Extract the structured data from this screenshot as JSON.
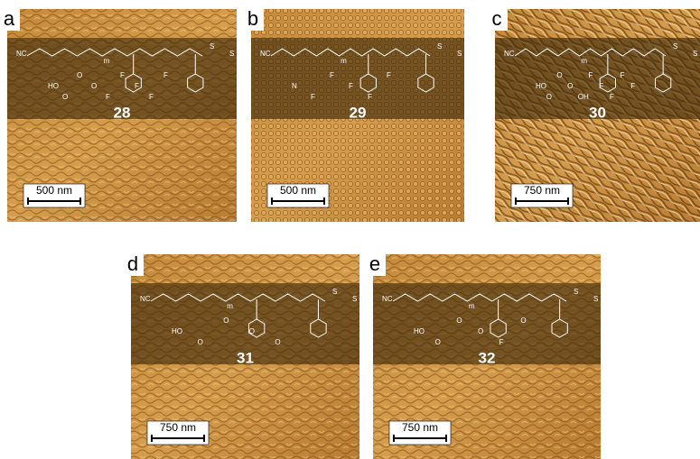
{
  "figure": {
    "panels": [
      {
        "letter": "a",
        "compound": "28",
        "scale_bar": "500 nm",
        "structure_labels": [
          "NC",
          "HO",
          "O",
          "O",
          "O",
          "F",
          "F",
          "F",
          "F",
          "F",
          "m",
          "S",
          "S"
        ]
      },
      {
        "letter": "b",
        "compound": "29",
        "scale_bar": "500 nm",
        "structure_labels": [
          "NC",
          "N",
          "F",
          "F",
          "F",
          "F",
          "F",
          "m",
          "S",
          "S"
        ]
      },
      {
        "letter": "c",
        "compound": "30",
        "scale_bar": "750 nm",
        "structure_labels": [
          "NC",
          "HO",
          "O",
          "O",
          "O",
          "OH",
          "F",
          "F",
          "F",
          "F",
          "F",
          "m",
          "S",
          "S"
        ]
      },
      {
        "letter": "d",
        "compound": "31",
        "scale_bar": "750 nm",
        "structure_labels": [
          "NC",
          "HO",
          "O",
          "O",
          "O",
          "O",
          "m",
          "S",
          "S"
        ]
      },
      {
        "letter": "e",
        "compound": "32",
        "scale_bar": "750 nm",
        "structure_labels": [
          "NC",
          "HO",
          "O",
          "O",
          "O",
          "F",
          "O",
          "m",
          "S",
          "S"
        ]
      }
    ]
  }
}
